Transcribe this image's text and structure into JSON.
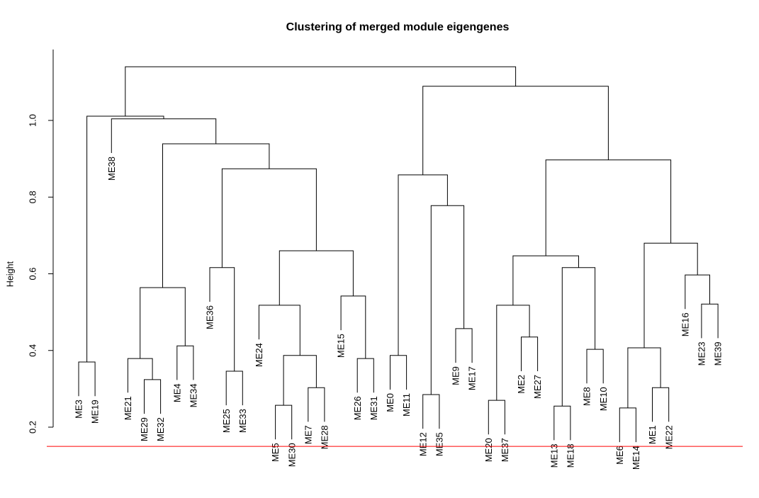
{
  "chart_data": {
    "type": "dendrogram",
    "title": "Clustering of merged module eigengenes",
    "ylabel": "Height",
    "yticks": [
      "0.2",
      "0.4",
      "0.6",
      "0.8",
      "1.0"
    ],
    "ylim": [
      0.15,
      1.185
    ],
    "grid": false,
    "cut_height": 0.15,
    "cut_line_color": "#ff0000",
    "line_color": "#000000",
    "tree": {
      "height": 1.14,
      "children": [
        {
          "height": 1.011,
          "children": [
            {
              "height": 0.37,
              "children": [
                "ME3",
                "ME19"
              ]
            },
            {
              "height": 1.004,
              "children": [
                "ME38",
                {
                  "height": 0.939,
                  "children": [
                    {
                      "height": 0.564,
                      "children": [
                        {
                          "height": 0.379,
                          "children": [
                            "ME21",
                            {
                              "height": 0.324,
                              "children": [
                                "ME29",
                                "ME32"
                              ]
                            }
                          ]
                        },
                        {
                          "height": 0.412,
                          "children": [
                            "ME4",
                            "ME34"
                          ]
                        }
                      ]
                    },
                    {
                      "height": 0.874,
                      "children": [
                        {
                          "height": 0.616,
                          "children": [
                            "ME36",
                            {
                              "height": 0.346,
                              "children": [
                                "ME25",
                                "ME33"
                              ]
                            }
                          ]
                        },
                        {
                          "height": 0.66,
                          "children": [
                            {
                              "height": 0.518,
                              "children": [
                                "ME24",
                                {
                                  "height": 0.387,
                                  "children": [
                                    {
                                      "height": 0.257,
                                      "children": [
                                        "ME5",
                                        "ME30"
                                      ]
                                    },
                                    {
                                      "height": 0.303,
                                      "children": [
                                        "ME7",
                                        "ME28"
                                      ]
                                    }
                                  ]
                                }
                              ]
                            },
                            {
                              "height": 0.542,
                              "children": [
                                "ME15",
                                {
                                  "height": 0.379,
                                  "children": [
                                    "ME26",
                                    "ME31"
                                  ]
                                }
                              ]
                            }
                          ]
                        }
                      ]
                    }
                  ]
                }
              ]
            }
          ]
        },
        {
          "height": 1.089,
          "children": [
            {
              "height": 0.858,
              "children": [
                {
                  "height": 0.387,
                  "children": [
                    "ME0",
                    "ME11"
                  ]
                },
                {
                  "height": 0.778,
                  "children": [
                    {
                      "height": 0.285,
                      "children": [
                        "ME12",
                        "ME35"
                      ]
                    },
                    {
                      "height": 0.457,
                      "children": [
                        "ME9",
                        "ME17"
                      ]
                    }
                  ]
                }
              ]
            },
            {
              "height": 0.897,
              "children": [
                {
                  "height": 0.647,
                  "children": [
                    {
                      "height": 0.518,
                      "children": [
                        {
                          "height": 0.27,
                          "children": [
                            "ME20",
                            "ME37"
                          ]
                        },
                        {
                          "height": 0.435,
                          "children": [
                            "ME2",
                            "ME27"
                          ]
                        }
                      ]
                    },
                    {
                      "height": 0.616,
                      "children": [
                        {
                          "height": 0.255,
                          "children": [
                            "ME13",
                            "ME18"
                          ]
                        },
                        {
                          "height": 0.403,
                          "children": [
                            "ME8",
                            "ME10"
                          ]
                        }
                      ]
                    }
                  ]
                },
                {
                  "height": 0.68,
                  "children": [
                    {
                      "height": 0.407,
                      "children": [
                        {
                          "height": 0.25,
                          "children": [
                            "ME6",
                            "ME14"
                          ]
                        },
                        {
                          "height": 0.303,
                          "children": [
                            "ME1",
                            "ME22"
                          ]
                        }
                      ]
                    },
                    {
                      "height": 0.597,
                      "children": [
                        "ME16",
                        {
                          "height": 0.521,
                          "children": [
                            "ME23",
                            "ME39"
                          ]
                        }
                      ]
                    }
                  ]
                }
              ]
            }
          ]
        }
      ]
    }
  }
}
